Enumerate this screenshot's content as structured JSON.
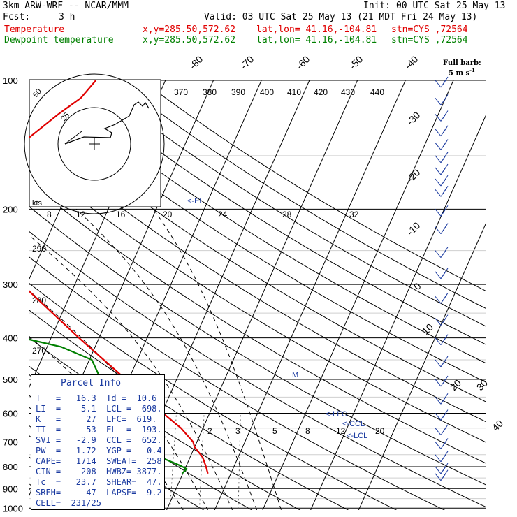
{
  "header": {
    "model": "3km ARW-WRF -- NCAR/MMM",
    "init": "Init: 00 UTC Sat 25 May 13",
    "fcst_label": "Fcst:",
    "fcst_value": "3 h",
    "valid": "Valid: 03 UTC Sat 25 May 13 (21 MDT Fri 24 May 13)",
    "temp_line": {
      "label": "Temperature",
      "xy": "x,y=285.50,572.62",
      "latlon": "lat,lon= 41.16,-104.81",
      "stn": "stn=CYS ,72564"
    },
    "dew_line": {
      "label": "Dewpoint temperature",
      "xy": "x,y=285.50,572.62",
      "latlon": "lat,lon= 41.16,-104.81",
      "stn": "stn=CYS ,72564"
    },
    "colors": {
      "temperature": "#e00000",
      "dewpoint": "#008000"
    }
  },
  "barb_legend": {
    "line1": "Full barb:",
    "line2": "5 m s",
    "exp": "-1"
  },
  "parcel_info": {
    "title": "Parcel Info",
    "rows": [
      "T   =   16.3  Td =  10.6",
      "LI  =   -5.1  LCL =  698.",
      "K   =     27  LFC=  619.",
      "TT  =     53  EL  =  193.",
      "SVI =   -2.9  CCL =  652.",
      "PW  =   1.72  YGP =   0.4",
      "CAPE=   1714  SWEAT=  258",
      "CIN =   -208  HWBZ= 3877.",
      "Tc  =   23.7  SHEAR=  47.",
      "SREH=     47  LAPSE=  9.2",
      "CELL=  231/25"
    ]
  },
  "chart_data": {
    "type": "line",
    "title": "",
    "y_axis": {
      "scale": "log pressure",
      "ylim": [
        1000,
        100
      ],
      "tick_labels": [
        "100",
        "200",
        "300",
        "400",
        "500",
        "600",
        "700",
        "800",
        "900",
        "1000"
      ]
    },
    "isotherm_labels": [
      "-80",
      "-70",
      "-60",
      "-50",
      "-40",
      "-30",
      "-20",
      "-10",
      "0",
      "10",
      "20",
      "30",
      "40"
    ],
    "theta_labels": [
      "370",
      "380",
      "390",
      "400",
      "410",
      "420",
      "430",
      "440",
      "290",
      "280",
      "270"
    ],
    "mixing_ratio_labels": [
      "2",
      "3",
      "5",
      "8",
      "12",
      "20"
    ],
    "hodograph": {
      "units_label": "kts",
      "rings_labels": [
        "50",
        "25"
      ],
      "speed_labels": [
        "8",
        "12",
        "16",
        "20",
        "24",
        "28",
        "32"
      ]
    },
    "markers": {
      "el": "<-EL",
      "lfc": "<-LFC",
      "ccl": "<-CCL",
      "lcl": "<-LCL",
      "m": "M"
    },
    "series": [
      {
        "name": "Temperature",
        "color": "#e00000",
        "points": [
          [
            830,
            15.2
          ],
          [
            800,
            14.2
          ],
          [
            760,
            12.6
          ],
          [
            720,
            10.0
          ],
          [
            700,
            9.2
          ],
          [
            650,
            5.4
          ],
          [
            600,
            0.3
          ],
          [
            550,
            -5.0
          ],
          [
            500,
            -10.6
          ],
          [
            450,
            -17.0
          ],
          [
            400,
            -24.2
          ],
          [
            350,
            -32.0
          ],
          [
            300,
            -41.0
          ],
          [
            260,
            -48.8
          ],
          [
            220,
            -56.5
          ],
          [
            200,
            -59.5
          ],
          [
            180,
            -58.8
          ],
          [
            160,
            -57.5
          ],
          [
            140,
            -54.0
          ],
          [
            120,
            -49.2
          ],
          [
            110,
            -46.0
          ],
          [
            100,
            -44.5
          ]
        ]
      },
      {
        "name": "Dewpoint temperature",
        "color": "#008000",
        "points": [
          [
            830,
            9.8
          ],
          [
            810,
            10.4
          ],
          [
            795,
            8.7
          ],
          [
            760,
            3.8
          ],
          [
            740,
            -1.2
          ],
          [
            700,
            -2.6
          ],
          [
            660,
            -3.7
          ],
          [
            600,
            -5.6
          ],
          [
            560,
            -10.8
          ],
          [
            500,
            -15.8
          ],
          [
            450,
            -19.5
          ],
          [
            420,
            -27.0
          ],
          [
            400,
            -36.0
          ],
          [
            380,
            -48.0
          ],
          [
            350,
            -52.0
          ],
          [
            330,
            -50.0
          ],
          [
            300,
            -53.0
          ],
          [
            270,
            -59.0
          ],
          [
            240,
            -64.5
          ],
          [
            200,
            -71.0
          ],
          [
            170,
            -74.5
          ],
          [
            150,
            -76.8
          ],
          [
            130,
            -79.5
          ],
          [
            120,
            -81.0
          ],
          [
            110,
            -83.0
          ],
          [
            100,
            -84.0
          ]
        ]
      }
    ],
    "wind_barbs_pressure": [
      100,
      110,
      120,
      130,
      140,
      150,
      160,
      170,
      180,
      200,
      220,
      250,
      280,
      320,
      360,
      400,
      450,
      500,
      550,
      600,
      650,
      700,
      750,
      800,
      830
    ]
  }
}
